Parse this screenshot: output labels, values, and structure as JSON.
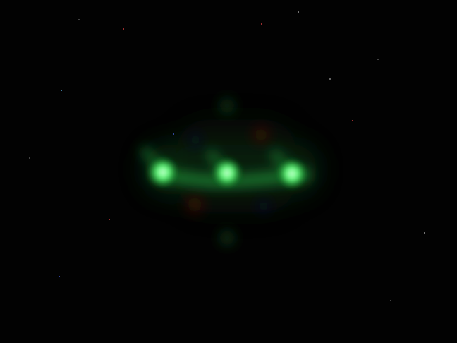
{
  "scene": {
    "background_color": "#020202",
    "glow_color": "#39ff5a",
    "core_color": "#9dffb0",
    "faint_red_color": "#ff3b2f",
    "faint_blue_color": "#2b55ff"
  },
  "content": {
    "visible_text": ""
  }
}
